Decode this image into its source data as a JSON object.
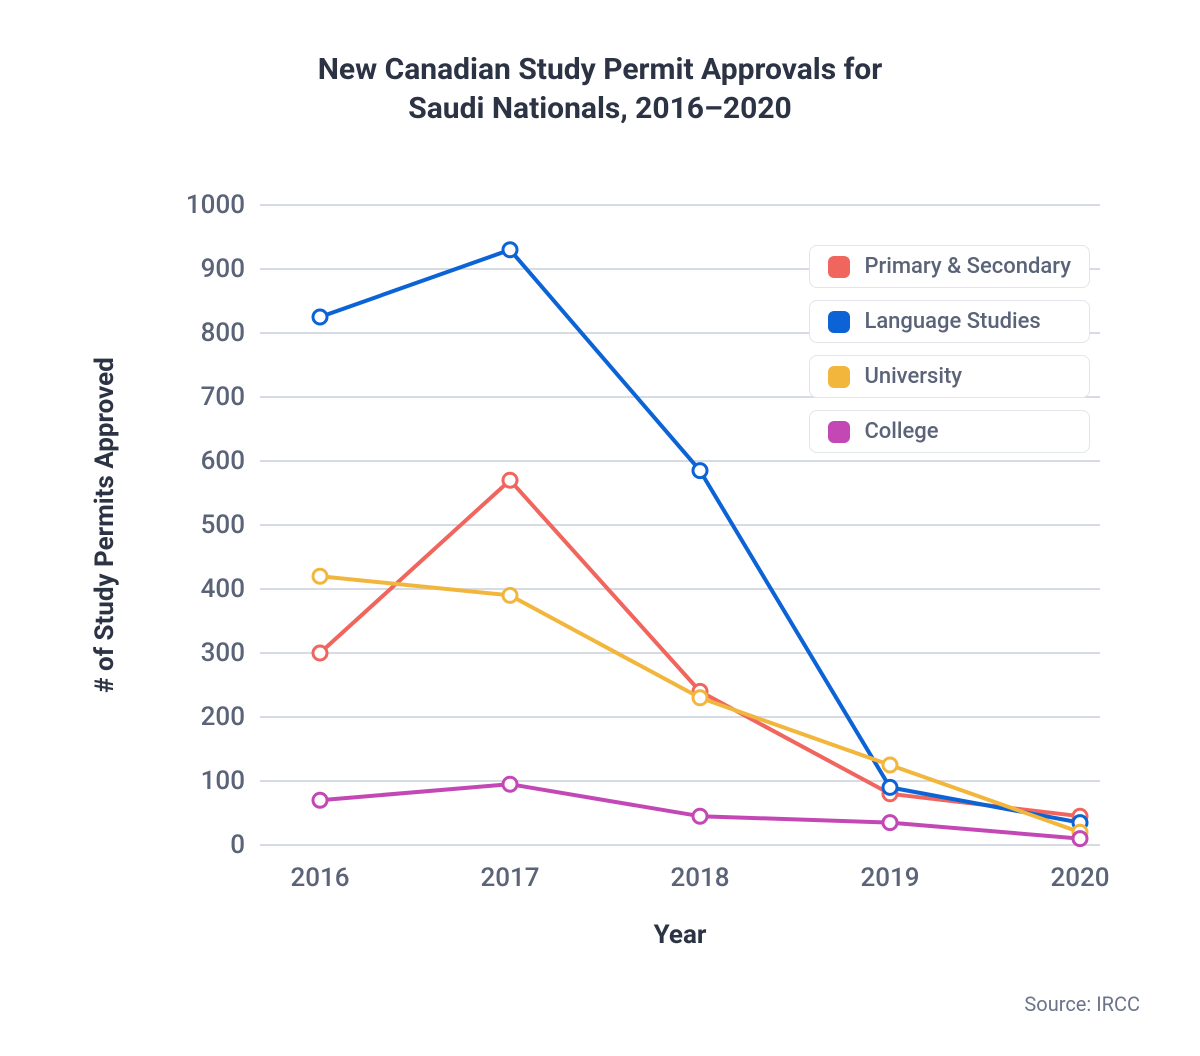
{
  "title_line1": "New Canadian Study Permit Approvals for",
  "title_line2": "Saudi Nationals, 2016–2020",
  "chart": {
    "type": "line",
    "x_label": "Year",
    "y_label": "# of Study Permits Approved",
    "x_categories": [
      "2016",
      "2017",
      "2018",
      "2019",
      "2020"
    ],
    "y_ticks": [
      0,
      100,
      200,
      300,
      400,
      500,
      600,
      700,
      800,
      900,
      1000
    ],
    "ylim": [
      0,
      1000
    ],
    "background_color": "#ffffff",
    "grid_color": "#d7dbe3",
    "tick_label_color": "#5a6378",
    "tick_label_fontsize": 26,
    "axis_title_color": "#2c3344",
    "axis_title_fontsize": 26,
    "line_width": 4,
    "marker_style": "open-circle",
    "marker_radius": 7,
    "marker_stroke_width": 3,
    "series": [
      {
        "name": "Primary & Secondary",
        "color": "#f0655d",
        "values": [
          300,
          570,
          240,
          80,
          45
        ]
      },
      {
        "name": "Language Studies",
        "color": "#0c63d6",
        "values": [
          825,
          930,
          585,
          90,
          35
        ]
      },
      {
        "name": "University",
        "color": "#f2b63d",
        "values": [
          420,
          390,
          230,
          125,
          20
        ]
      },
      {
        "name": "College",
        "color": "#c348b6",
        "values": [
          70,
          95,
          45,
          35,
          10
        ]
      }
    ]
  },
  "legend": {
    "border_color": "#e3e5ea",
    "background": "#ffffff",
    "text_color": "#5a6378",
    "fontsize": 22,
    "swatch_radius": 6
  },
  "source_label": "Source: IRCC"
}
